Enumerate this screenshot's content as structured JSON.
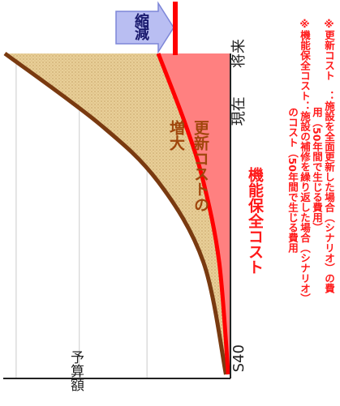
{
  "chart_data": {
    "type": "area",
    "x_ticks": [
      "S40",
      "現在",
      "将来"
    ],
    "y_label": "予算額",
    "series": [
      {
        "name": "更新コスト",
        "color": "#7a3a10",
        "points": [
          [
            0,
            0.02
          ],
          [
            0.35,
            0.12
          ],
          [
            0.6,
            0.32
          ],
          [
            0.78,
            0.58
          ],
          [
            1.0,
            1.0
          ]
        ]
      },
      {
        "name": "機能保全コスト",
        "color": "#ff0000",
        "points": [
          [
            0,
            0.01
          ],
          [
            0.35,
            0.05
          ],
          [
            0.6,
            0.12
          ],
          [
            0.78,
            0.2
          ],
          [
            1.0,
            0.32
          ]
        ]
      }
    ],
    "annotations": {
      "gap_label": "更新コストの増大",
      "reduction_label": "縮減",
      "lower_label": "機能保全コスト"
    },
    "notes": [
      "※更新コスト　：施設を全面更新した場合（シナリオ）の費",
      "用（50年間で生じる費用）",
      "※機能保全コスト：施設の補修を繰り返した場合（シナリオ）",
      "のコスト（50年間で生じる費用"
    ],
    "colors": {
      "gap_fill": "#e8cf98",
      "lower_fill": "#ff6a6a",
      "upper_line": "#7a3a10",
      "lower_line": "#ff0000",
      "arrow": "#b9bef2"
    }
  }
}
